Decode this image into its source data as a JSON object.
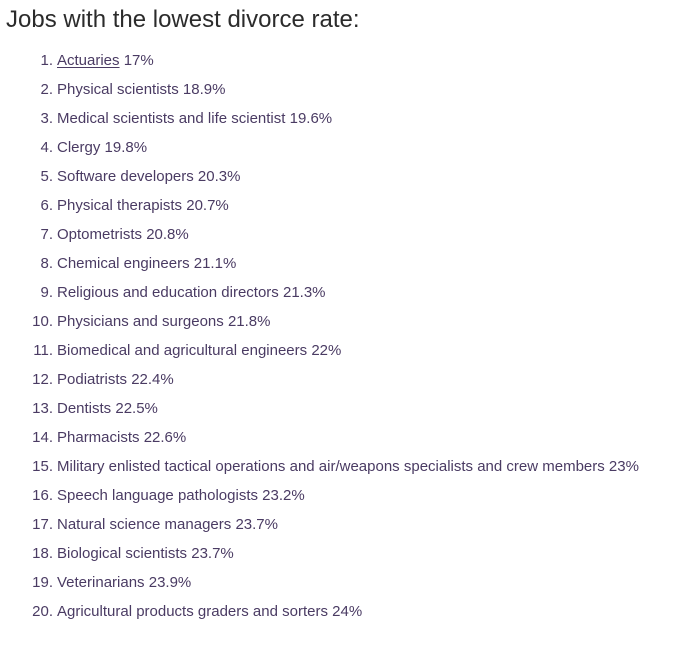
{
  "title": "Jobs with the lowest divorce rate:",
  "items": [
    {
      "num": "1.",
      "job": "Actuaries",
      "rate": "17%",
      "link": true
    },
    {
      "num": "2.",
      "job": "Physical scientists",
      "rate": "18.9%"
    },
    {
      "num": "3.",
      "job": "Medical scientists and life scientist",
      "rate": "19.6%"
    },
    {
      "num": "4.",
      "job": "Clergy",
      "rate": "19.8%"
    },
    {
      "num": "5.",
      "job": "Software developers",
      "rate": "20.3%"
    },
    {
      "num": "6.",
      "job": "Physical therapists",
      "rate": "20.7%"
    },
    {
      "num": "7.",
      "job": "Optometrists",
      "rate": "20.8%"
    },
    {
      "num": "8.",
      "job": "Chemical engineers",
      "rate": "21.1%"
    },
    {
      "num": "9.",
      "job": "Religious and education directors",
      "rate": "21.3%"
    },
    {
      "num": "10.",
      "job": "Physicians and surgeons",
      "rate": "21.8%"
    },
    {
      "num": "11.",
      "job": "Biomedical and agricultural engineers",
      "rate": "22%"
    },
    {
      "num": "12.",
      "job": "Podiatrists",
      "rate": "22.4%"
    },
    {
      "num": "13.",
      "job": "Dentists",
      "rate": "22.5%"
    },
    {
      "num": "14.",
      "job": "Pharmacists",
      "rate": "22.6%"
    },
    {
      "num": "15.",
      "job": "Military enlisted tactical operations and air/weapons specialists and crew members",
      "rate": "23%"
    },
    {
      "num": "16.",
      "job": "Speech language pathologists",
      "rate": "23.2%"
    },
    {
      "num": "17.",
      "job": "Natural science managers",
      "rate": "23.7%"
    },
    {
      "num": "18.",
      "job": "Biological scientists",
      "rate": "23.7%"
    },
    {
      "num": "19.",
      "job": "Veterinarians",
      "rate": "23.9%"
    },
    {
      "num": "20.",
      "job": "Agricultural products graders and sorters",
      "rate": "24%"
    }
  ]
}
